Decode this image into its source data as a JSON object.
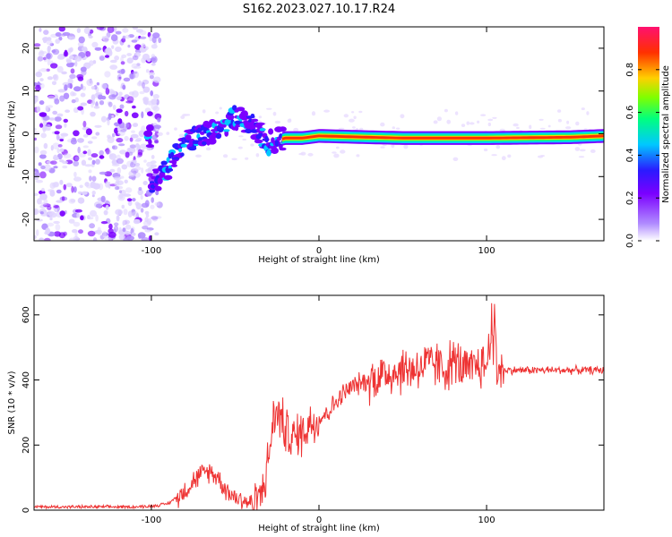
{
  "figure_title": "S162.2023.027.10.17.R24",
  "chart_data": [
    {
      "type": "heatmap",
      "xlabel": "Height of straight line (km)",
      "ylabel": "Frequency (Hz)",
      "xlim": [
        -170,
        170
      ],
      "ylim": [
        -25,
        25
      ],
      "xticks": [
        -100,
        0,
        100
      ],
      "yticks": [
        -20,
        -10,
        0,
        10,
        20
      ],
      "colorbar": {
        "label": "Normalized spectral amplitude",
        "range": [
          0,
          1
        ],
        "ticks": [
          "0.0",
          "0.2",
          "0.4",
          "0.6",
          "0.8"
        ],
        "colors": [
          "#ffffff",
          "#b08cff",
          "#7b00ff",
          "#2a1bff",
          "#00c8ff",
          "#00ff7f",
          "#7fff00",
          "#ffd000",
          "#ff3000",
          "#ff1070"
        ]
      },
      "description_points": [
        {
          "x": -100,
          "y": -12
        },
        {
          "x": -90,
          "y": -8
        },
        {
          "x": -80,
          "y": -2
        },
        {
          "x": -70,
          "y": 0
        },
        {
          "x": -60,
          "y": 1
        },
        {
          "x": -50,
          "y": 4
        },
        {
          "x": -40,
          "y": 2
        },
        {
          "x": -30,
          "y": -2
        },
        {
          "x": -20,
          "y": -1
        },
        {
          "x": -10,
          "y": -1
        },
        {
          "x": 0,
          "y": -0.5
        },
        {
          "x": 50,
          "y": -1
        },
        {
          "x": 100,
          "y": -1
        },
        {
          "x": 150,
          "y": -0.8
        },
        {
          "x": 170,
          "y": -0.5
        }
      ]
    },
    {
      "type": "line",
      "xlabel": "Height of straight line (km)",
      "ylabel": "SNR (10 * v/v)",
      "xlim": [
        -170,
        170
      ],
      "ylim": [
        0,
        660
      ],
      "xticks": [
        -100,
        0,
        100
      ],
      "yticks": [
        0,
        200,
        400,
        600
      ],
      "color": "#ee3333",
      "series": [
        {
          "x": [
            -170,
            -150,
            -130,
            -110,
            -100,
            -90,
            -85,
            -80,
            -75,
            -70,
            -65,
            -60,
            -55,
            -50,
            -45,
            -40,
            -35,
            -30,
            -28,
            -25,
            -22,
            -20,
            -15,
            -10,
            -5,
            0,
            5,
            10,
            15,
            20,
            25,
            30,
            40,
            50,
            60,
            70,
            75,
            80,
            85,
            90,
            95,
            100,
            103,
            104,
            105,
            106,
            110,
            120,
            130,
            140,
            150,
            160,
            170
          ],
          "y": [
            10,
            10,
            10,
            10,
            12,
            20,
            40,
            60,
            90,
            110,
            120,
            100,
            60,
            40,
            30,
            20,
            40,
            150,
            260,
            300,
            280,
            240,
            220,
            240,
            270,
            280,
            300,
            330,
            360,
            380,
            390,
            400,
            420,
            430,
            440,
            450,
            430,
            460,
            440,
            420,
            450,
            440,
            580,
            450,
            620,
            440,
            430,
            430,
            430,
            430,
            430,
            430,
            430
          ]
        }
      ]
    }
  ]
}
